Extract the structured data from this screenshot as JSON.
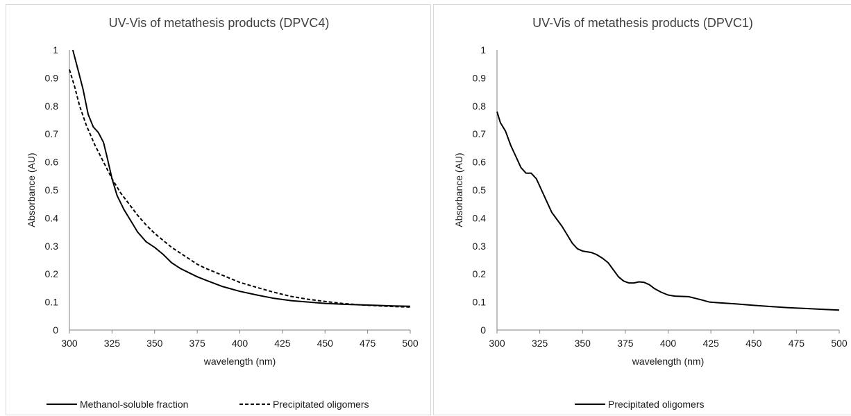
{
  "chart_data": [
    {
      "type": "line",
      "title": "UV-Vis of metathesis products (DPVC4)",
      "xlabel": "wavelength (nm)",
      "ylabel": "Absorbance (AU)",
      "xlim": [
        300,
        500
      ],
      "ylim": [
        0,
        1
      ],
      "x_ticks": [
        "300",
        "325",
        "350",
        "375",
        "400",
        "425",
        "450",
        "475",
        "500"
      ],
      "y_ticks": [
        "0",
        "0.1",
        "0.2",
        "0.3",
        "0.4",
        "0.5",
        "0.6",
        "0.7",
        "0.8",
        "0.9",
        "1"
      ],
      "grid": false,
      "legend_position": "bottom",
      "series": [
        {
          "name": "Methanol-soluble fraction",
          "style": "solid",
          "color": "#000000",
          "points": [
            [
              302,
              1.0
            ],
            [
              305,
              0.93
            ],
            [
              308,
              0.86
            ],
            [
              311,
              0.77
            ],
            [
              314,
              0.725
            ],
            [
              317,
              0.705
            ],
            [
              320,
              0.67
            ],
            [
              322,
              0.62
            ],
            [
              325,
              0.54
            ],
            [
              328,
              0.48
            ],
            [
              332,
              0.43
            ],
            [
              336,
              0.39
            ],
            [
              340,
              0.35
            ],
            [
              345,
              0.315
            ],
            [
              350,
              0.295
            ],
            [
              355,
              0.27
            ],
            [
              360,
              0.24
            ],
            [
              365,
              0.22
            ],
            [
              370,
              0.205
            ],
            [
              375,
              0.19
            ],
            [
              380,
              0.178
            ],
            [
              390,
              0.155
            ],
            [
              400,
              0.138
            ],
            [
              410,
              0.125
            ],
            [
              420,
              0.113
            ],
            [
              430,
              0.105
            ],
            [
              440,
              0.1
            ],
            [
              450,
              0.095
            ],
            [
              460,
              0.092
            ],
            [
              470,
              0.09
            ],
            [
              480,
              0.088
            ],
            [
              490,
              0.086
            ],
            [
              500,
              0.085
            ]
          ]
        },
        {
          "name": "Precipitated oligomers",
          "style": "dashed",
          "color": "#000000",
          "points": [
            [
              300,
              0.93
            ],
            [
              303,
              0.87
            ],
            [
              306,
              0.8
            ],
            [
              310,
              0.73
            ],
            [
              315,
              0.66
            ],
            [
              320,
              0.6
            ],
            [
              325,
              0.54
            ],
            [
              330,
              0.49
            ],
            [
              335,
              0.45
            ],
            [
              340,
              0.41
            ],
            [
              345,
              0.375
            ],
            [
              350,
              0.345
            ],
            [
              355,
              0.32
            ],
            [
              360,
              0.295
            ],
            [
              365,
              0.275
            ],
            [
              370,
              0.255
            ],
            [
              375,
              0.235
            ],
            [
              380,
              0.22
            ],
            [
              390,
              0.195
            ],
            [
              400,
              0.17
            ],
            [
              410,
              0.152
            ],
            [
              420,
              0.135
            ],
            [
              430,
              0.12
            ],
            [
              440,
              0.11
            ],
            [
              450,
              0.102
            ],
            [
              460,
              0.095
            ],
            [
              470,
              0.09
            ],
            [
              480,
              0.087
            ],
            [
              490,
              0.084
            ],
            [
              500,
              0.082
            ]
          ]
        }
      ]
    },
    {
      "type": "line",
      "title": "UV-Vis of metathesis products (DPVC1)",
      "xlabel": "wavelength (nm)",
      "ylabel": "Absorbance (AU)",
      "xlim": [
        300,
        500
      ],
      "ylim": [
        0,
        1
      ],
      "x_ticks": [
        "300",
        "325",
        "350",
        "375",
        "400",
        "425",
        "450",
        "475",
        "500"
      ],
      "y_ticks": [
        "0",
        "0.1",
        "0.2",
        "0.3",
        "0.4",
        "0.5",
        "0.6",
        "0.7",
        "0.8",
        "0.9",
        "1"
      ],
      "grid": false,
      "legend_position": "bottom",
      "series": [
        {
          "name": "Precipitated oligomers",
          "style": "solid",
          "color": "#000000",
          "points": [
            [
              300,
              0.78
            ],
            [
              302,
              0.74
            ],
            [
              305,
              0.71
            ],
            [
              308,
              0.66
            ],
            [
              311,
              0.62
            ],
            [
              314,
              0.58
            ],
            [
              317,
              0.56
            ],
            [
              320,
              0.56
            ],
            [
              323,
              0.54
            ],
            [
              326,
              0.5
            ],
            [
              329,
              0.46
            ],
            [
              332,
              0.42
            ],
            [
              335,
              0.395
            ],
            [
              338,
              0.37
            ],
            [
              341,
              0.34
            ],
            [
              344,
              0.31
            ],
            [
              347,
              0.29
            ],
            [
              350,
              0.282
            ],
            [
              355,
              0.277
            ],
            [
              358,
              0.27
            ],
            [
              362,
              0.255
            ],
            [
              365,
              0.24
            ],
            [
              368,
              0.215
            ],
            [
              371,
              0.19
            ],
            [
              374,
              0.175
            ],
            [
              377,
              0.168
            ],
            [
              380,
              0.168
            ],
            [
              383,
              0.172
            ],
            [
              386,
              0.17
            ],
            [
              389,
              0.162
            ],
            [
              392,
              0.148
            ],
            [
              396,
              0.135
            ],
            [
              400,
              0.125
            ],
            [
              404,
              0.121
            ],
            [
              408,
              0.12
            ],
            [
              412,
              0.119
            ],
            [
              416,
              0.113
            ],
            [
              420,
              0.107
            ],
            [
              424,
              0.1
            ],
            [
              430,
              0.097
            ],
            [
              440,
              0.093
            ],
            [
              450,
              0.088
            ],
            [
              460,
              0.084
            ],
            [
              470,
              0.08
            ],
            [
              480,
              0.077
            ],
            [
              490,
              0.074
            ],
            [
              500,
              0.071
            ]
          ]
        }
      ]
    }
  ]
}
